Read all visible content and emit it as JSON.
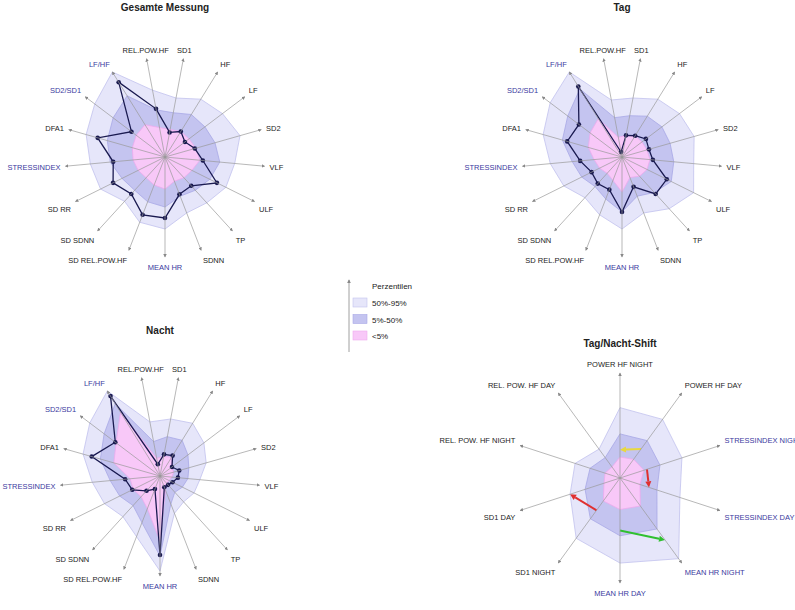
{
  "chart_data": [
    {
      "type": "radar",
      "title": "Gesamte Messung",
      "categories": [
        "REL.POW.HF",
        "SD1",
        "HF",
        "LF",
        "SD2",
        "VLF",
        "ULF",
        "TP",
        "SDNN",
        "MEAN HR",
        "SD REL.POW.HF",
        "SD SDNN",
        "SD RR",
        "STRESSINDEX",
        "DFA1",
        "SD2/SD1",
        "LF/HF"
      ],
      "category_colors": [
        "#222222",
        "#222222",
        "#222222",
        "#222222",
        "#222222",
        "#222222",
        "#222222",
        "#222222",
        "#222222",
        "#3a3aa0",
        "#222222",
        "#222222",
        "#222222",
        "#3a3aa0",
        "#222222",
        "#3a3aa0",
        "#3a3aa0"
      ],
      "bands": [
        [
          68,
          60,
          68,
          72,
          78,
          70,
          68,
          62,
          60,
          72,
          70,
          60,
          72,
          75,
          82,
          88,
          100
        ],
        [
          48,
          45,
          50,
          50,
          52,
          55,
          50,
          45,
          42,
          50,
          48,
          45,
          48,
          55,
          60,
          65,
          72
        ],
        [
          30,
          28,
          30,
          30,
          32,
          35,
          30,
          28,
          26,
          32,
          30,
          28,
          30,
          32,
          34,
          36,
          38
        ]
      ],
      "values": [
        49,
        25,
        30,
        25,
        31,
        38,
        58,
        39,
        40,
        61,
        62,
        50,
        58,
        52,
        70,
        42,
        88
      ],
      "color": "#1a1a50",
      "marker": "circle",
      "ylim": [
        0,
        100
      ],
      "tick_labels": false,
      "grid": false
    },
    {
      "type": "radar",
      "title": "Tag",
      "categories": [
        "REL.POW.HF",
        "SD1",
        "HF",
        "LF",
        "SD2",
        "VLF",
        "ULF",
        "TP",
        "SDNN",
        "MEAN HR",
        "SD REL.POW.HF",
        "SD SDNN",
        "SD RR",
        "STRESSINDEX",
        "DFA1",
        "SD2/SD1",
        "LF/HF"
      ],
      "category_colors": [
        "#222222",
        "#222222",
        "#222222",
        "#222222",
        "#222222",
        "#222222",
        "#222222",
        "#222222",
        "#222222",
        "#3a3aa0",
        "#222222",
        "#222222",
        "#222222",
        "#3a3aa0",
        "#222222",
        "#3a3aa0",
        "#3a3aa0"
      ],
      "bands": [
        [
          58,
          60,
          68,
          72,
          75,
          72,
          80,
          70,
          60,
          72,
          62,
          55,
          65,
          72,
          82,
          90,
          100
        ],
        [
          40,
          42,
          48,
          50,
          50,
          52,
          55,
          48,
          42,
          55,
          45,
          40,
          45,
          50,
          62,
          68,
          80
        ],
        [
          20,
          22,
          25,
          25,
          26,
          28,
          28,
          26,
          22,
          35,
          25,
          22,
          25,
          28,
          35,
          40,
          45
        ]
      ],
      "values": [
        5,
        22,
        25,
        30,
        28,
        31,
        50,
        50,
        32,
        55,
        35,
        36,
        34,
        42,
        57,
        54,
        83
      ],
      "color": "#1a1a50",
      "marker": "circle",
      "ylim": [
        0,
        100
      ],
      "tick_labels": false,
      "grid": false
    },
    {
      "type": "radar",
      "title": "Nacht",
      "categories": [
        "REL.POW.HF",
        "SD1",
        "HF",
        "LF",
        "SD2",
        "VLF",
        "ULF",
        "TP",
        "SDNN",
        "MEAN HR",
        "SD REL.POW.HF",
        "SD SDNN",
        "SD RR",
        "STRESSINDEX",
        "DFA1",
        "SD2/SD1",
        "LF/HF"
      ],
      "category_colors": [
        "#222222",
        "#222222",
        "#222222",
        "#222222",
        "#222222",
        "#222222",
        "#222222",
        "#222222",
        "#222222",
        "#3a3aa0",
        "#222222",
        "#222222",
        "#222222",
        "#3a3aa0",
        "#222222",
        "#3a3aa0",
        "#3a3aa0"
      ],
      "bands": [
        [
          55,
          58,
          62,
          55,
          48,
          40,
          38,
          35,
          40,
          95,
          65,
          55,
          62,
          68,
          80,
          88,
          100
        ],
        [
          35,
          40,
          42,
          35,
          30,
          28,
          25,
          22,
          30,
          80,
          50,
          40,
          45,
          50,
          62,
          70,
          85
        ],
        [
          18,
          20,
          22,
          15,
          14,
          12,
          10,
          10,
          15,
          65,
          35,
          28,
          30,
          30,
          48,
          55,
          75
        ]
      ],
      "values": [
        12,
        22,
        24,
        15,
        20,
        18,
        14,
        12,
        12,
        79,
        14,
        20,
        31,
        35,
        71,
        56,
        94
      ],
      "color": "#1a1a50",
      "marker": "circle",
      "ylim": [
        0,
        100
      ],
      "tick_labels": false,
      "grid": false
    },
    {
      "type": "radar_shift",
      "title": "Tag/Nacht-Shift",
      "categories": [
        "POWER HF NIGHT",
        "POWER HF DAY",
        "STRESSINDEX NIGHT",
        "STRESSINDEX DAY",
        "MEAN HR NIGHT",
        "MEAN HR DAY",
        "SD1 NIGHT",
        "SD1 DAY",
        "REL. POW. HF NIGHT",
        "REL. POW. HF DAY"
      ],
      "category_colors": [
        "#222222",
        "#222222",
        "#3a3aa0",
        "#3a3aa0",
        "#3a3aa0",
        "#3a3aa0",
        "#222222",
        "#222222",
        "#222222",
        "#222222"
      ],
      "bands": [
        [
          67,
          69,
          62,
          60,
          95,
          81,
          71,
          50,
          45,
          34
        ],
        [
          42,
          44,
          40,
          37,
          60,
          55,
          48,
          35,
          30,
          24
        ],
        [
          20,
          22,
          24,
          20,
          33,
          30,
          27,
          16,
          15,
          13
        ]
      ],
      "arrows": [
        {
          "from_axis": 1,
          "from_value": 34,
          "to_axis": 0,
          "to_value": 27,
          "color": "#e8d840"
        },
        {
          "from_axis": 2,
          "from_value": 27,
          "to_axis": 3,
          "to_value": 29,
          "color": "#e03030"
        },
        {
          "from_axis": 5,
          "from_value": 50,
          "to_axis": 4,
          "to_value": 73,
          "color": "#30c030"
        },
        {
          "from_axis": 6,
          "from_value": 38,
          "to_axis": 7,
          "to_value": 50,
          "color": "#e03030"
        }
      ],
      "ylim": [
        0,
        100
      ],
      "tick_labels": false,
      "grid": false
    }
  ],
  "percentiles": {
    "title": "Perzentilen",
    "items": [
      {
        "label": "50%-95%",
        "color": "#e6e6fa"
      },
      {
        "label": "5%-50%",
        "color": "#c4c4f0"
      },
      {
        "label": "<5%",
        "color": "#f8c8f8"
      }
    ]
  }
}
